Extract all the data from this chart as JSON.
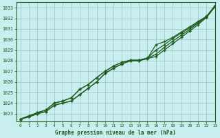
{
  "xlabel": "Graphe pression niveau de la mer (hPa)",
  "xlim": [
    -0.5,
    23
  ],
  "ylim": [
    1022.3,
    1033.5
  ],
  "yticks": [
    1023,
    1024,
    1025,
    1026,
    1027,
    1028,
    1029,
    1030,
    1031,
    1032,
    1033
  ],
  "xticks": [
    0,
    1,
    2,
    3,
    4,
    5,
    6,
    7,
    8,
    9,
    10,
    11,
    12,
    13,
    14,
    15,
    16,
    17,
    18,
    19,
    20,
    21,
    22,
    23
  ],
  "background_color": "#c8eef0",
  "plot_bg_color": "#c8eef0",
  "grid_color": "#9dbfbf",
  "line_color": "#1e5c1e",
  "lines": [
    [
      1022.5,
      1022.7,
      1023.0,
      1023.2,
      1023.8,
      1024.0,
      1024.2,
      1024.8,
      1025.4,
      1026.0,
      1026.8,
      1027.3,
      1027.7,
      1028.0,
      1028.0,
      1028.2,
      1028.4,
      1029.0,
      1029.6,
      1030.2,
      1030.8,
      1031.4,
      1032.1,
      1033.1
    ],
    [
      1022.5,
      1022.7,
      1023.0,
      1023.2,
      1023.8,
      1024.0,
      1024.2,
      1024.8,
      1025.4,
      1026.0,
      1026.8,
      1027.3,
      1027.7,
      1028.0,
      1028.0,
      1028.2,
      1029.5,
      1029.8,
      1030.2,
      1030.7,
      1031.2,
      1031.7,
      1032.2,
      1033.2
    ],
    [
      1022.5,
      1022.8,
      1023.1,
      1023.35,
      1024.0,
      1024.2,
      1024.5,
      1025.3,
      1025.75,
      1026.4,
      1027.0,
      1027.5,
      1027.85,
      1028.05,
      1028.05,
      1028.25,
      1029.0,
      1029.5,
      1030.1,
      1030.6,
      1031.1,
      1031.6,
      1032.15,
      1033.2
    ],
    [
      1022.5,
      1022.8,
      1023.1,
      1023.35,
      1024.0,
      1024.2,
      1024.5,
      1025.3,
      1025.75,
      1026.4,
      1027.0,
      1027.5,
      1027.85,
      1028.05,
      1028.05,
      1028.25,
      1028.6,
      1029.25,
      1029.85,
      1030.4,
      1030.95,
      1031.55,
      1032.1,
      1033.1
    ]
  ]
}
